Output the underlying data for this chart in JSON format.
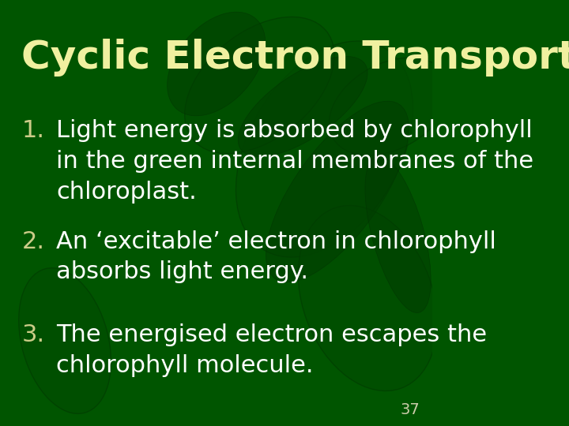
{
  "title": "Cyclic Electron Transport",
  "title_color": "#f0f0a0",
  "title_fontsize": 36,
  "title_bold": true,
  "bg_color_top": "#006600",
  "bg_color_bottom": "#004d00",
  "text_color": "#ffffff",
  "number_color": "#cccc88",
  "body_fontsize": 22,
  "items": [
    {
      "number": "1.",
      "lines": [
        "Light energy is absorbed by chlorophyll",
        "in the green internal membranes of the",
        "chloroplast."
      ]
    },
    {
      "number": "2.",
      "lines": [
        "An ‘excitable’ electron in chlorophyll",
        "absorbs light energy."
      ]
    },
    {
      "number": "3.",
      "lines": [
        "The energised electron escapes the",
        "chlorophyll molecule."
      ]
    }
  ],
  "page_number": "37",
  "page_num_color": "#ccccaa",
  "page_num_fontsize": 14
}
